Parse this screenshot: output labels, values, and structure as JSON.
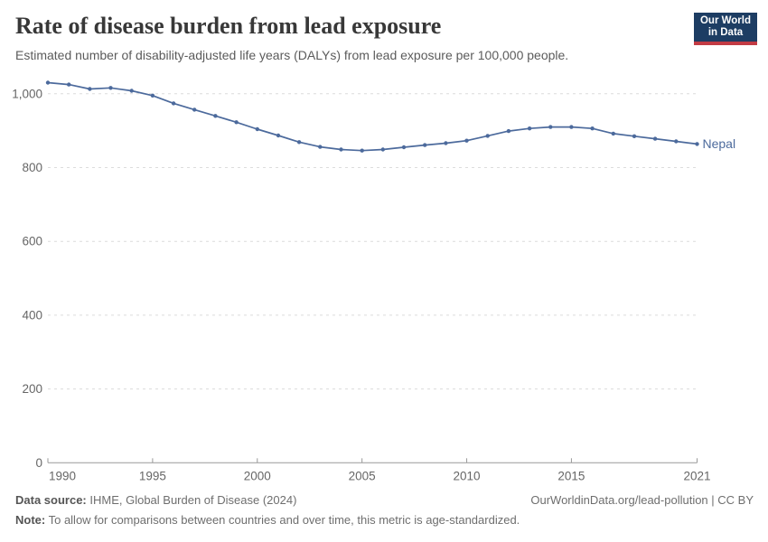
{
  "header": {
    "title": "Rate of disease burden from lead exposure",
    "subtitle": "Estimated number of disability-adjusted life years (DALYs) from lead exposure per 100,000 people.",
    "logo": {
      "line1": "Our World",
      "line2": "in Data",
      "bg_color": "#1d3d63",
      "accent_color": "#c23b44"
    }
  },
  "chart_data": {
    "type": "line",
    "title": "Rate of disease burden from lead exposure",
    "subtitle": "Estimated number of disability-adjusted life years (DALYs) from lead exposure per 100,000 people.",
    "x": [
      1990,
      1991,
      1992,
      1993,
      1994,
      1995,
      1996,
      1997,
      1998,
      1999,
      2000,
      2001,
      2002,
      2003,
      2004,
      2005,
      2006,
      2007,
      2008,
      2009,
      2010,
      2011,
      2012,
      2013,
      2014,
      2015,
      2016,
      2017,
      2018,
      2019,
      2020,
      2021
    ],
    "series": [
      {
        "name": "Nepal",
        "color": "#4C6A9C",
        "values": [
          1030,
          1025,
          1013,
          1016,
          1008,
          995,
          974,
          957,
          940,
          923,
          904,
          887,
          869,
          856,
          849,
          846,
          849,
          855,
          861,
          866,
          873,
          886,
          899,
          906,
          910,
          910,
          906,
          892,
          885,
          878,
          871,
          864
        ]
      }
    ],
    "xlabel": "",
    "ylabel": "",
    "ylim": [
      0,
      1050
    ],
    "xlim": [
      1990,
      2021
    ],
    "yticks": [
      0,
      200,
      400,
      600,
      800,
      1000
    ],
    "ytick_labels": [
      "0",
      "200",
      "400",
      "600",
      "800",
      "1,000"
    ],
    "xticks": [
      1990,
      1995,
      2000,
      2005,
      2010,
      2015,
      2021
    ],
    "grid": "horizontal-dashed",
    "legend_position": "end-of-line-label",
    "end_label": "Nepal",
    "style": {
      "grid_color": "#dcdcdc",
      "axis_color": "#999999",
      "tick_label_color": "#666666",
      "marker": "dot"
    }
  },
  "footer": {
    "datasource_label": "Data source:",
    "datasource_value": " IHME, Global Burden of Disease (2024)",
    "url_text": "OurWorldinData.org/lead-pollution | CC BY",
    "note_label": "Note:",
    "note_value": " To allow for comparisons between countries and over time, this metric is age-standardized."
  }
}
